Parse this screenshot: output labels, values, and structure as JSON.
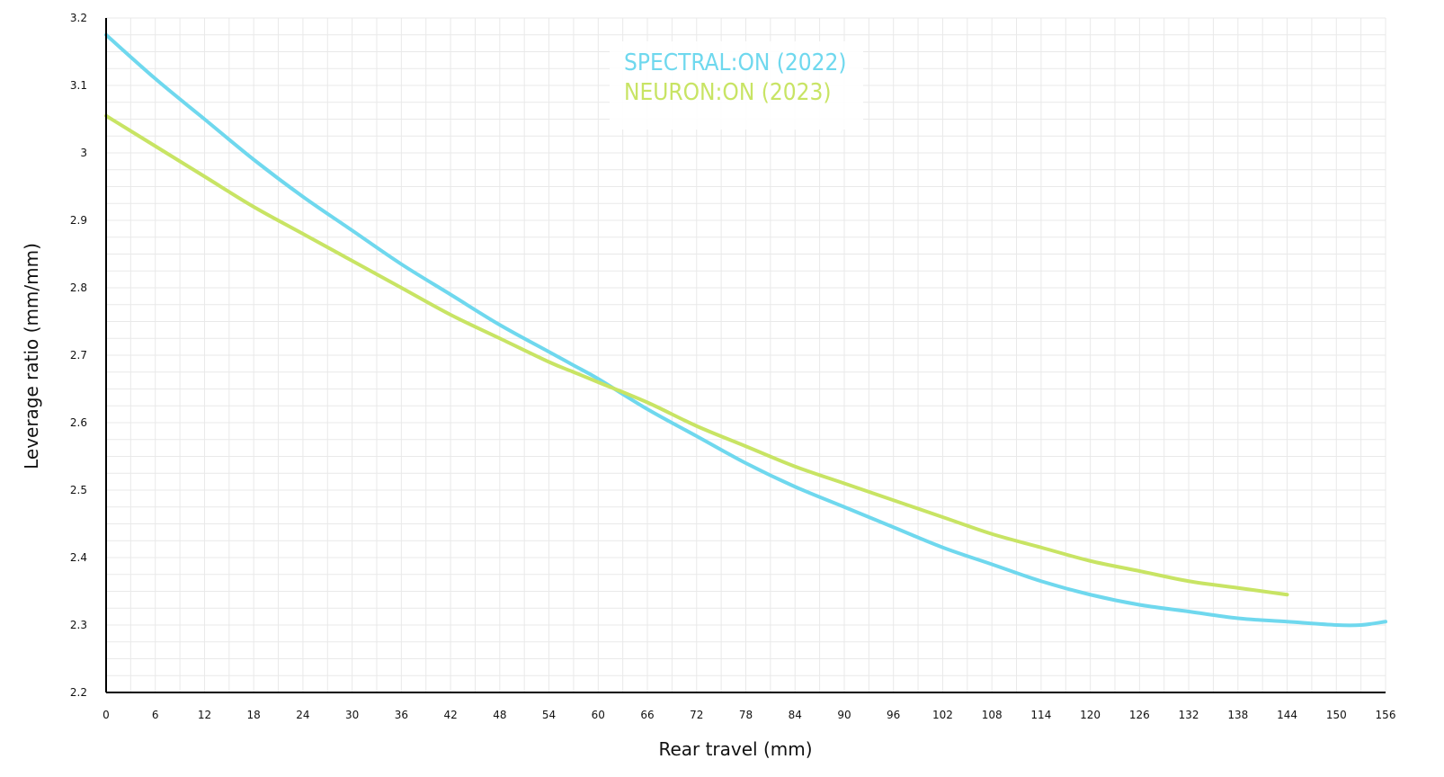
{
  "chart_data": {
    "type": "line",
    "title": "",
    "xlabel": "Rear travel (mm)",
    "ylabel": "Leverage ratio (mm/mm)",
    "xlim": [
      0,
      156
    ],
    "ylim": [
      2.2,
      3.2
    ],
    "x_ticks": [
      0,
      6,
      12,
      18,
      24,
      30,
      36,
      42,
      48,
      54,
      60,
      66,
      72,
      78,
      84,
      90,
      96,
      102,
      108,
      114,
      120,
      126,
      132,
      138,
      144,
      150,
      156
    ],
    "x_tick_labels": [
      "0",
      "6",
      "12",
      "18",
      "24",
      "30",
      "36",
      "42",
      "48",
      "54",
      "60",
      "66",
      "72",
      "78",
      "84",
      "90",
      "96",
      "102",
      "108",
      "114",
      "120",
      "126",
      "132",
      "138",
      "144",
      "150",
      "156"
    ],
    "y_ticks": [
      2.2,
      2.3,
      2.4,
      2.5,
      2.6,
      2.7,
      2.8,
      2.9,
      3.0,
      3.1,
      3.2
    ],
    "y_tick_labels": [
      "2.2",
      "2.3",
      "2.4",
      "2.5",
      "2.6",
      "2.7",
      "2.8",
      "2.9",
      "3",
      "3.1",
      "3.2"
    ],
    "grid": true,
    "legend_position": "top-center",
    "series": [
      {
        "name": "SPECTRAL:ON (2022)",
        "color": "#6fd8ee",
        "x": [
          0,
          6,
          12,
          18,
          24,
          30,
          36,
          42,
          48,
          54,
          57,
          60,
          66,
          72,
          78,
          84,
          90,
          96,
          102,
          108,
          114,
          120,
          126,
          132,
          138,
          144,
          150,
          153,
          156
        ],
        "y": [
          3.175,
          3.11,
          3.05,
          2.99,
          2.935,
          2.885,
          2.835,
          2.79,
          2.745,
          2.705,
          2.685,
          2.665,
          2.62,
          2.58,
          2.54,
          2.505,
          2.475,
          2.445,
          2.415,
          2.39,
          2.365,
          2.345,
          2.33,
          2.32,
          2.31,
          2.305,
          2.3,
          2.3,
          2.305
        ]
      },
      {
        "name": "NEURON:ON (2023)",
        "color": "#c8e464",
        "x": [
          0,
          6,
          12,
          18,
          24,
          30,
          36,
          42,
          48,
          54,
          57,
          60,
          66,
          72,
          78,
          84,
          90,
          96,
          102,
          108,
          114,
          120,
          126,
          132,
          138,
          144
        ],
        "y": [
          3.055,
          3.01,
          2.965,
          2.92,
          2.88,
          2.84,
          2.8,
          2.76,
          2.725,
          2.69,
          2.675,
          2.66,
          2.63,
          2.595,
          2.565,
          2.535,
          2.51,
          2.485,
          2.46,
          2.435,
          2.415,
          2.395,
          2.38,
          2.365,
          2.355,
          2.345
        ]
      }
    ]
  }
}
